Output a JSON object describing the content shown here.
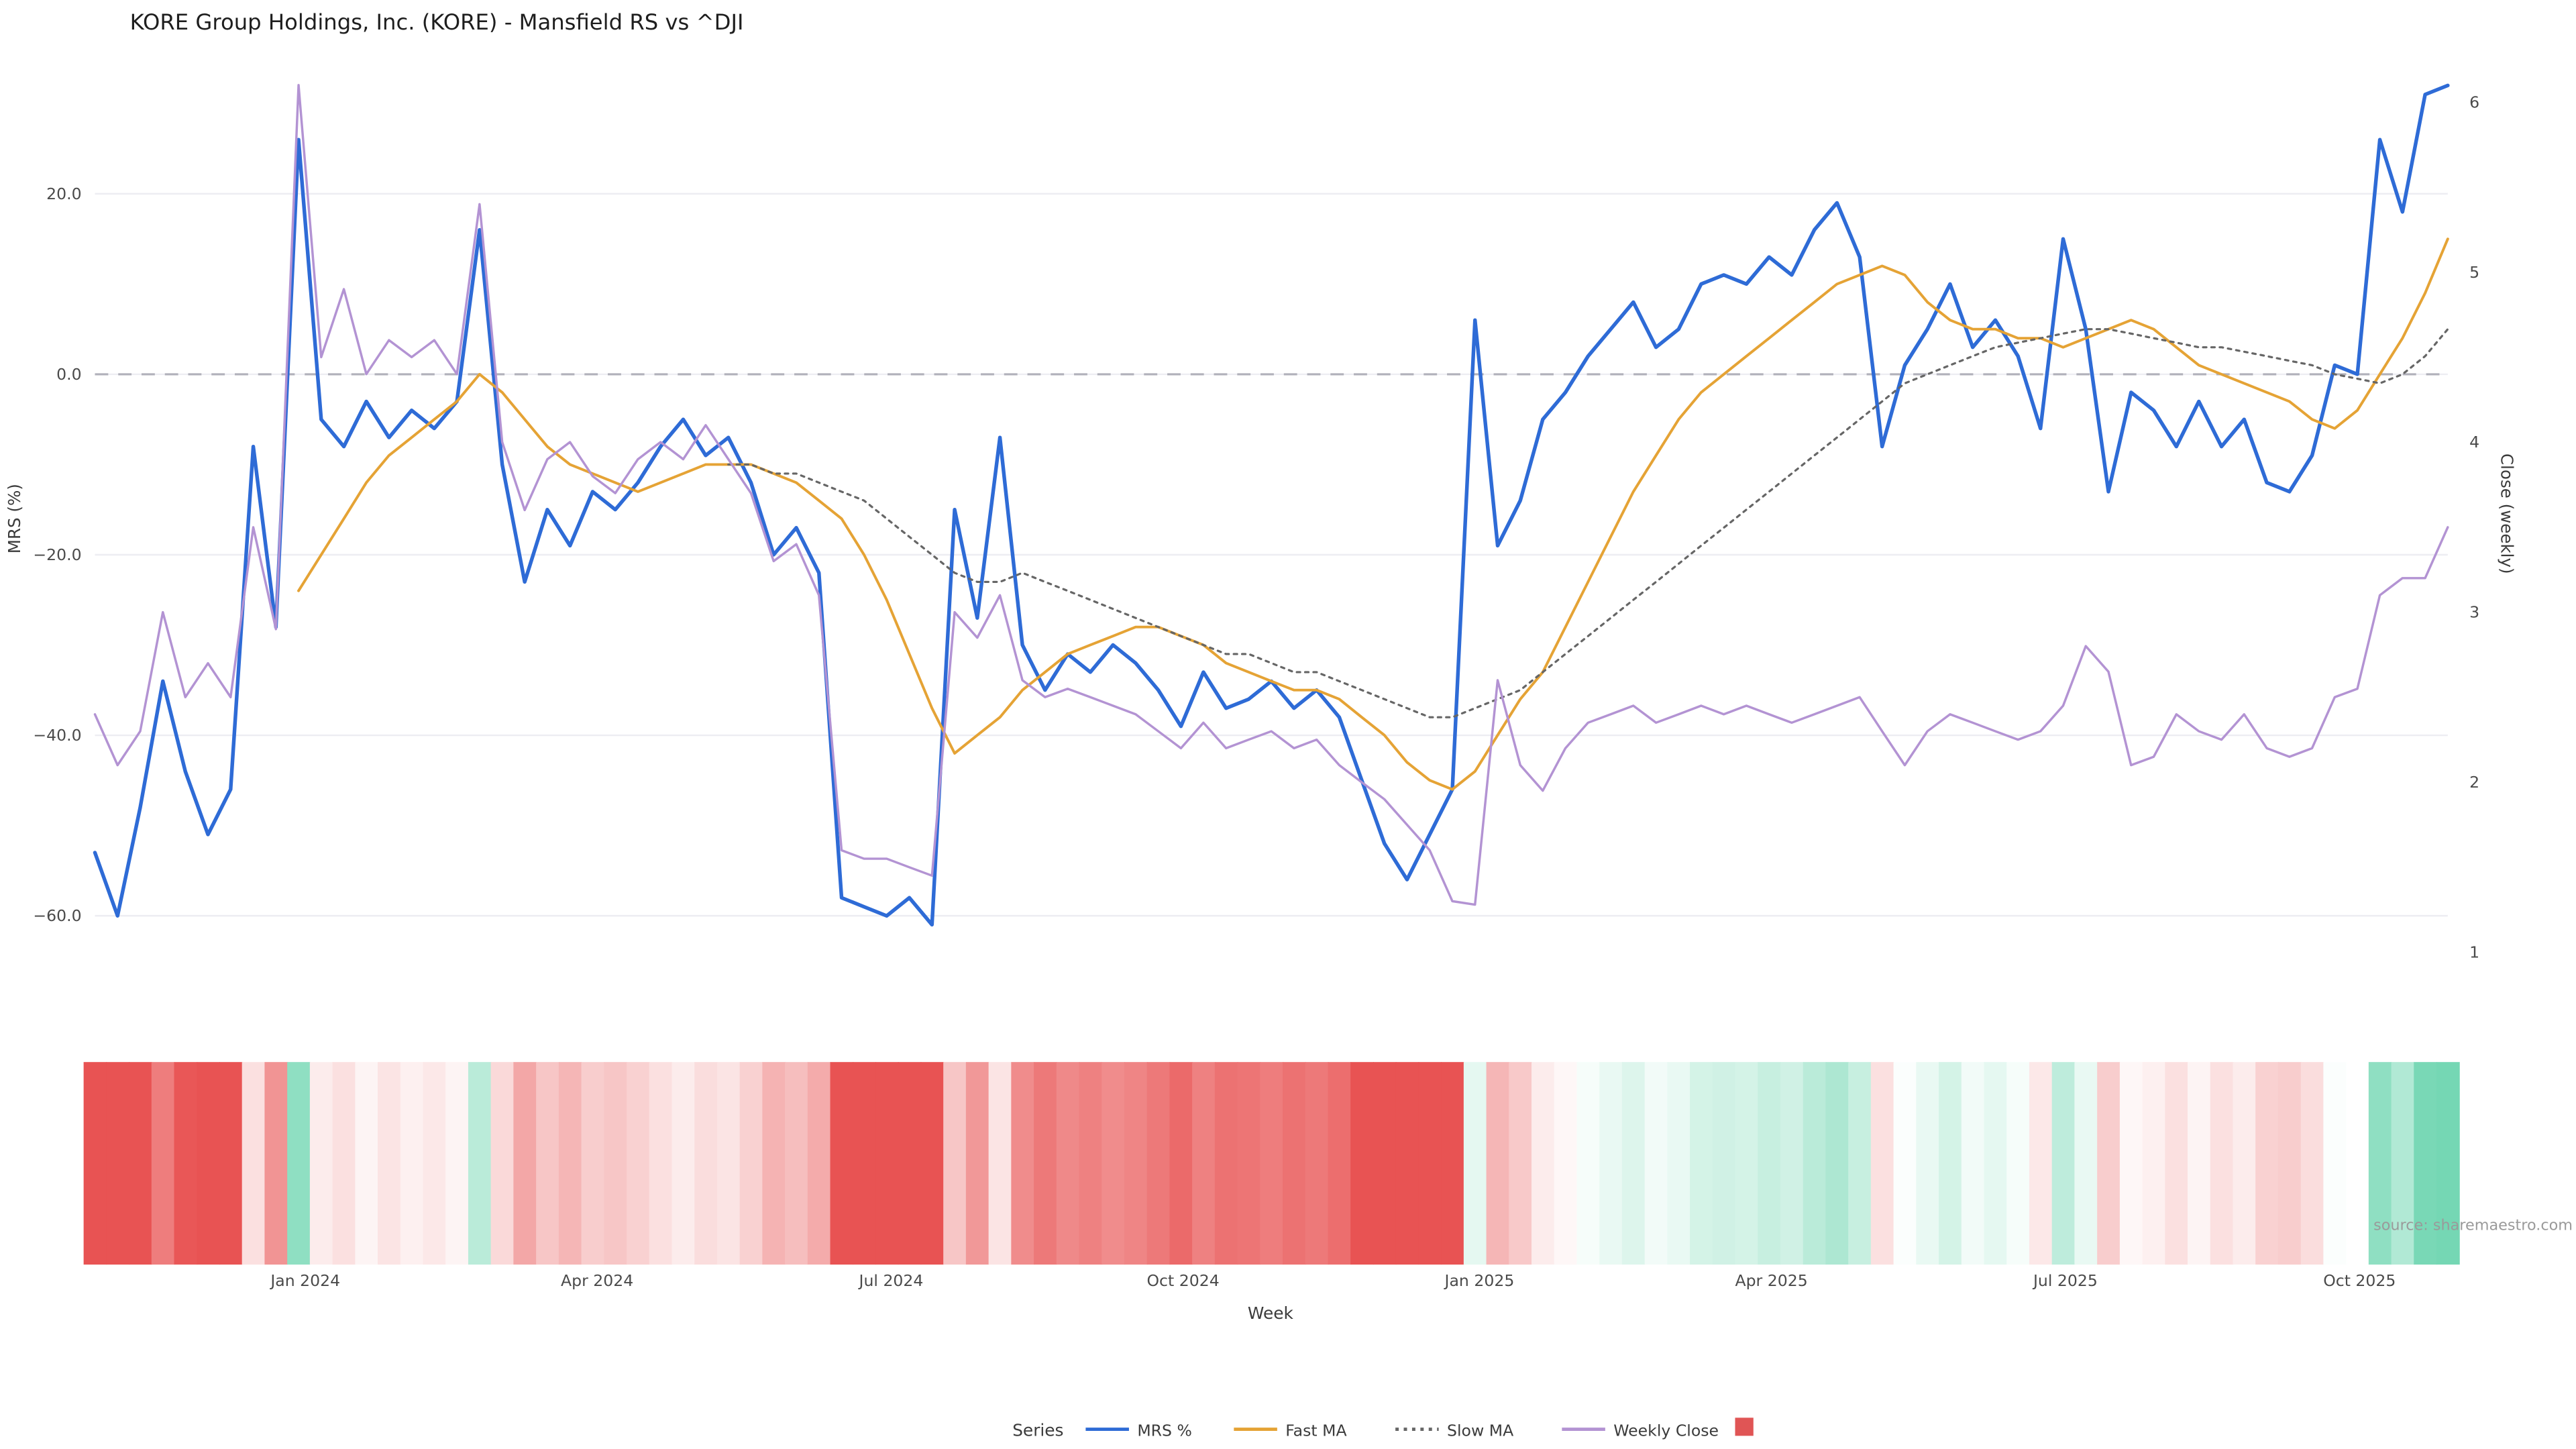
{
  "page": {
    "source_note": "source: sharemaestro.com"
  },
  "legend": {
    "title": "Series",
    "items": [
      {
        "label": "MRS %",
        "color": "#2e6bd6",
        "style": "solid"
      },
      {
        "label": "Fast MA",
        "color": "#e5a335",
        "style": "solid"
      },
      {
        "label": "Slow MA",
        "color": "#666666",
        "style": "dotted"
      },
      {
        "label": "Weekly Close",
        "color": "#b393d3",
        "style": "solid"
      },
      {
        "label": "",
        "color": "#e05555",
        "style": "square"
      }
    ]
  },
  "chart_data": {
    "type": "line",
    "title": "KORE Group Holdings, Inc. (KORE) - Mansfield RS vs ^DJI",
    "xlabel": "Week",
    "ylabel_left": "MRS (%)",
    "ylabel_right": "Close (weekly)",
    "n_points": 105,
    "y_left_range": [
      -68,
      36
    ],
    "y_right_range": [
      0.79,
      6.31
    ],
    "zero_line": true,
    "y_left_ticks": [
      {
        "label": "20.0",
        "value": 20
      },
      {
        "label": "0.0",
        "value": 0
      },
      {
        "label": "−20.0",
        "value": -20
      },
      {
        "label": "−40.0",
        "value": -40
      },
      {
        "label": "−60.0",
        "value": -60
      }
    ],
    "y_right_ticks": [
      {
        "label": "6",
        "value": 6
      },
      {
        "label": "5",
        "value": 5
      },
      {
        "label": "4",
        "value": 4
      },
      {
        "label": "3",
        "value": 3
      },
      {
        "label": "2",
        "value": 2
      },
      {
        "label": "1",
        "value": 1
      }
    ],
    "x_ticks": [
      {
        "label": "Jan 2024",
        "index": 9.3
      },
      {
        "label": "Apr 2024",
        "index": 22.2
      },
      {
        "label": "Jul 2024",
        "index": 35.2
      },
      {
        "label": "Oct 2024",
        "index": 48.1
      },
      {
        "label": "Jan 2025",
        "index": 61.2
      },
      {
        "label": "Apr 2025",
        "index": 74.1
      },
      {
        "label": "Jul 2025",
        "index": 87.1
      },
      {
        "label": "Oct 2025",
        "index": 100.1
      }
    ],
    "series": [
      {
        "name": "MRS %",
        "axis": "left",
        "color": "#2e6bd6",
        "width": 2.2,
        "dash": null,
        "values": [
          -53,
          -60,
          -48,
          -34,
          -44,
          -51,
          -46,
          -8,
          -28,
          26,
          -5,
          -8,
          -3,
          -7,
          -4,
          -6,
          -3,
          16,
          -10,
          -23,
          -15,
          -19,
          -13,
          -15,
          -12,
          -8,
          -5,
          -9,
          -7,
          -12,
          -20,
          -17,
          -22,
          -58,
          -59,
          -60,
          -58,
          -61,
          -15,
          -27,
          -7,
          -30,
          -35,
          -31,
          -33,
          -30,
          -32,
          -35,
          -39,
          -33,
          -37,
          -36,
          -34,
          -37,
          -35,
          -38,
          -45,
          -52,
          -56,
          -51,
          -46,
          6,
          -19,
          -14,
          -5,
          -2,
          2,
          5,
          8,
          3,
          5,
          10,
          11,
          10,
          13,
          11,
          16,
          19,
          13,
          -8,
          1,
          5,
          10,
          3,
          6,
          2,
          -6,
          15,
          5,
          -13,
          -2,
          -4,
          -8,
          -3,
          -8,
          -5,
          -12,
          -13,
          -9,
          1,
          0,
          26,
          18,
          31,
          32
        ]
      },
      {
        "name": "Fast MA",
        "axis": "left",
        "color": "#e5a335",
        "width": 1.6,
        "dash": null,
        "values": [
          null,
          null,
          null,
          null,
          null,
          null,
          null,
          null,
          null,
          -24,
          -20,
          -16,
          -12,
          -9,
          -7,
          -5,
          -3,
          0,
          -2,
          -5,
          -8,
          -10,
          -11,
          -12,
          -13,
          -12,
          -11,
          -10,
          -10,
          -10,
          -11,
          -12,
          -14,
          -16,
          -20,
          -25,
          -31,
          -37,
          -42,
          -40,
          -38,
          -35,
          -33,
          -31,
          -30,
          -29,
          -28,
          -28,
          -29,
          -30,
          -32,
          -33,
          -34,
          -35,
          -35,
          -36,
          -38,
          -40,
          -43,
          -45,
          -46,
          -44,
          -40,
          -36,
          -33,
          -28,
          -23,
          -18,
          -13,
          -9,
          -5,
          -2,
          0,
          2,
          4,
          6,
          8,
          10,
          11,
          12,
          11,
          8,
          6,
          5,
          5,
          4,
          4,
          3,
          4,
          5,
          6,
          5,
          3,
          1,
          0,
          -1,
          -2,
          -3,
          -5,
          -6,
          -4,
          0,
          4,
          9,
          15
        ]
      },
      {
        "name": "Slow MA",
        "axis": "left",
        "color": "#666666",
        "width": 1.3,
        "dash": "2 3",
        "values": [
          null,
          null,
          null,
          null,
          null,
          null,
          null,
          null,
          null,
          null,
          null,
          null,
          null,
          null,
          null,
          null,
          null,
          null,
          null,
          null,
          null,
          null,
          null,
          null,
          null,
          null,
          null,
          null,
          -10,
          -10,
          -11,
          -11,
          -12,
          -13,
          -14,
          -16,
          -18,
          -20,
          -22,
          -23,
          -23,
          -22,
          -23,
          -24,
          -25,
          -26,
          -27,
          -28,
          -29,
          -30,
          -31,
          -31,
          -32,
          -33,
          -33,
          -34,
          -35,
          -36,
          -37,
          -38,
          -38,
          -37,
          -36,
          -35,
          -33,
          -31,
          -29,
          -27,
          -25,
          -23,
          -21,
          -19,
          -17,
          -15,
          -13,
          -11,
          -9,
          -7,
          -5,
          -3,
          -1,
          0,
          1,
          2,
          3,
          3.5,
          4,
          4.5,
          5,
          5,
          4.5,
          4,
          3.5,
          3,
          3,
          2.5,
          2,
          1.5,
          1,
          0,
          -0.5,
          -1,
          0,
          2,
          5
        ]
      },
      {
        "name": "Weekly Close",
        "axis": "right",
        "color": "#b393d3",
        "width": 1.4,
        "dash": null,
        "values": [
          2.4,
          2.1,
          2.3,
          3.0,
          2.5,
          2.7,
          2.5,
          3.5,
          2.9,
          6.1,
          4.5,
          4.9,
          4.4,
          4.6,
          4.5,
          4.6,
          4.4,
          5.4,
          4.0,
          3.6,
          3.9,
          4.0,
          3.8,
          3.7,
          3.9,
          4.0,
          3.9,
          4.1,
          3.9,
          3.7,
          3.3,
          3.4,
          3.1,
          1.6,
          1.55,
          1.55,
          1.5,
          1.45,
          3.0,
          2.85,
          3.1,
          2.6,
          2.5,
          2.55,
          2.5,
          2.45,
          2.4,
          2.3,
          2.2,
          2.35,
          2.2,
          2.25,
          2.3,
          2.2,
          2.25,
          2.1,
          2.0,
          1.9,
          1.75,
          1.6,
          1.3,
          1.28,
          2.6,
          2.1,
          1.95,
          2.2,
          2.35,
          2.4,
          2.45,
          2.35,
          2.4,
          2.45,
          2.4,
          2.45,
          2.4,
          2.35,
          2.4,
          2.45,
          2.5,
          2.3,
          2.1,
          2.3,
          2.4,
          2.35,
          2.3,
          2.25,
          2.3,
          2.45,
          2.8,
          2.65,
          2.1,
          2.15,
          2.4,
          2.3,
          2.25,
          2.4,
          2.2,
          2.15,
          2.2,
          2.5,
          2.55,
          3.1,
          3.2,
          3.2,
          3.5
        ]
      }
    ],
    "heatmap": {
      "from_series": "MRS %",
      "negative_color": "#e85353",
      "positive_color": "#3dc795",
      "neutral_color": "#ffffff",
      "saturation_at_abs": 45
    }
  }
}
